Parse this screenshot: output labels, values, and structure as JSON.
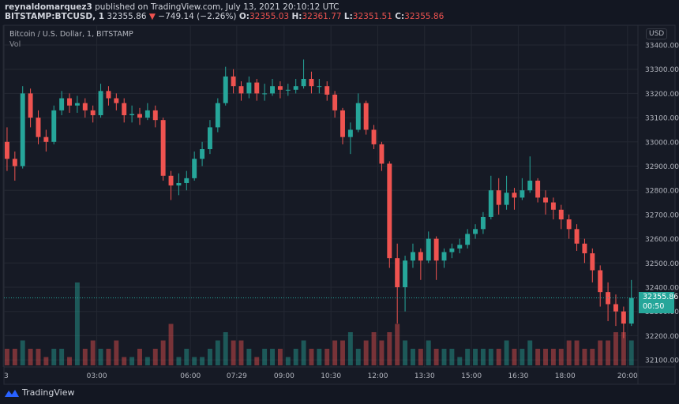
{
  "header": {
    "author": "reynaldomarquez3",
    "published": "published on TradingView.com, July 13, 2021 20:10:12 UTC",
    "symbol": "BITSTAMP:BTCUSD, 1",
    "last": "32355.86",
    "change": "−749.14 (−2.26%)",
    "o_label": "O:",
    "o": "32355.03",
    "h_label": "H:",
    "h": "32361.77",
    "l_label": "L:",
    "l": "32351.51",
    "c_label": "C:",
    "c": "32355.86",
    "down_arrow_icon": "triangle-down-icon"
  },
  "pane": {
    "title": "Bitcoin / U.S. Dollar, 1, BITSTAMP",
    "vol_label": "Vol",
    "currency": "USD"
  },
  "last_price_label": {
    "price": "32355.86",
    "countdown": "00:50"
  },
  "footer": {
    "brand": "TradingView"
  },
  "colors": {
    "up": "#26a69a",
    "down": "#ef5350",
    "background": "#161a25",
    "grid": "#242833"
  },
  "chart_data": {
    "type": "candlestick",
    "title": "Bitcoin / U.S. Dollar, 1, BITSTAMP",
    "note_interval_shown": "approximated at 15-minute resolution",
    "ylim": [
      32050,
      33480
    ],
    "y_ticks": [
      "32100.00",
      "32200.00",
      "32300.00",
      "32400.00",
      "32500.00",
      "32600.00",
      "32700.00",
      "32800.00",
      "32900.00",
      "33000.00",
      "33100.00",
      "33200.00",
      "33300.00",
      "33400.00"
    ],
    "x_ticks": [
      {
        "label": "3",
        "minute": 0
      },
      {
        "label": "03:00",
        "minute": 180
      },
      {
        "label": "06:00",
        "minute": 360
      },
      {
        "label": "07:29",
        "minute": 449
      },
      {
        "label": "09:00",
        "minute": 540
      },
      {
        "label": "10:30",
        "minute": 630
      },
      {
        "label": "12:00",
        "minute": 720
      },
      {
        "label": "13:30",
        "minute": 810
      },
      {
        "label": "15:00",
        "minute": 900
      },
      {
        "label": "16:30",
        "minute": 990
      },
      {
        "label": "18:00",
        "minute": 1080
      },
      {
        "label": "20:00",
        "minute": 1200
      }
    ],
    "candle_minutes": 15,
    "last_price": 32355.86,
    "grid": true,
    "ohlc": [
      [
        33000,
        33060,
        32880,
        32930
      ],
      [
        32930,
        32960,
        32840,
        32900
      ],
      [
        32900,
        33230,
        32890,
        33200
      ],
      [
        33200,
        33220,
        33060,
        33100
      ],
      [
        33100,
        33130,
        32990,
        33020
      ],
      [
        33020,
        33050,
        32960,
        33000
      ],
      [
        33000,
        33150,
        32990,
        33130
      ],
      [
        33130,
        33210,
        33110,
        33180
      ],
      [
        33180,
        33200,
        33120,
        33150
      ],
      [
        33150,
        33190,
        33120,
        33160
      ],
      [
        33160,
        33180,
        33100,
        33130
      ],
      [
        33130,
        33150,
        33080,
        33110
      ],
      [
        33110,
        33240,
        33100,
        33210
      ],
      [
        33210,
        33230,
        33150,
        33180
      ],
      [
        33180,
        33200,
        33130,
        33160
      ],
      [
        33160,
        33180,
        33080,
        33110
      ],
      [
        33110,
        33150,
        33080,
        33115
      ],
      [
        33115,
        33140,
        33070,
        33100
      ],
      [
        33100,
        33160,
        33090,
        33130
      ],
      [
        33130,
        33150,
        33060,
        33090
      ],
      [
        33090,
        33100,
        32840,
        32860
      ],
      [
        32860,
        32880,
        32760,
        32820
      ],
      [
        32820,
        32870,
        32780,
        32830
      ],
      [
        32830,
        32880,
        32800,
        32850
      ],
      [
        32850,
        32960,
        32840,
        32930
      ],
      [
        32930,
        33000,
        32900,
        32970
      ],
      [
        32970,
        33090,
        32950,
        33060
      ],
      [
        33060,
        33180,
        33040,
        33160
      ],
      [
        33160,
        33310,
        33150,
        33270
      ],
      [
        33270,
        33300,
        33200,
        33230
      ],
      [
        33230,
        33250,
        33170,
        33200
      ],
      [
        33200,
        33270,
        33180,
        33245
      ],
      [
        33245,
        33260,
        33170,
        33200
      ],
      [
        33200,
        33240,
        33170,
        33200
      ],
      [
        33200,
        33260,
        33190,
        33230
      ],
      [
        33230,
        33250,
        33180,
        33215
      ],
      [
        33215,
        33240,
        33190,
        33215
      ],
      [
        33215,
        33260,
        33200,
        33230
      ],
      [
        33230,
        33340,
        33220,
        33260
      ],
      [
        33260,
        33290,
        33200,
        33230
      ],
      [
        33230,
        33260,
        33200,
        33230
      ],
      [
        33230,
        33250,
        33170,
        33195
      ],
      [
        33195,
        33210,
        33100,
        33130
      ],
      [
        33130,
        33140,
        32990,
        33020
      ],
      [
        33020,
        33080,
        32950,
        33050
      ],
      [
        33050,
        33200,
        33040,
        33160
      ],
      [
        33160,
        33170,
        33030,
        33050
      ],
      [
        33050,
        33070,
        32970,
        32990
      ],
      [
        32990,
        33000,
        32880,
        32910
      ],
      [
        32910,
        32920,
        32480,
        32520
      ],
      [
        32520,
        32580,
        32250,
        32400
      ],
      [
        32400,
        32530,
        32300,
        32510
      ],
      [
        32510,
        32580,
        32480,
        32545
      ],
      [
        32545,
        32560,
        32430,
        32510
      ],
      [
        32510,
        32630,
        32500,
        32600
      ],
      [
        32600,
        32610,
        32430,
        32510
      ],
      [
        32510,
        32560,
        32480,
        32545
      ],
      [
        32545,
        32580,
        32520,
        32560
      ],
      [
        32560,
        32600,
        32540,
        32575
      ],
      [
        32575,
        32640,
        32560,
        32620
      ],
      [
        32620,
        32660,
        32600,
        32640
      ],
      [
        32640,
        32710,
        32620,
        32690
      ],
      [
        32690,
        32860,
        32680,
        32800
      ],
      [
        32800,
        32850,
        32700,
        32740
      ],
      [
        32740,
        32860,
        32720,
        32790
      ],
      [
        32790,
        32810,
        32720,
        32770
      ],
      [
        32770,
        32850,
        32760,
        32800
      ],
      [
        32800,
        32940,
        32790,
        32840
      ],
      [
        32840,
        32850,
        32750,
        32770
      ],
      [
        32770,
        32800,
        32700,
        32750
      ],
      [
        32750,
        32770,
        32680,
        32720
      ],
      [
        32720,
        32740,
        32640,
        32680
      ],
      [
        32680,
        32700,
        32600,
        32640
      ],
      [
        32640,
        32660,
        32550,
        32580
      ],
      [
        32580,
        32600,
        32500,
        32540
      ],
      [
        32540,
        32560,
        32420,
        32470
      ],
      [
        32470,
        32490,
        32320,
        32380
      ],
      [
        32380,
        32420,
        32260,
        32330
      ],
      [
        32330,
        32370,
        32240,
        32300
      ],
      [
        32300,
        32320,
        32190,
        32250
      ],
      [
        32250,
        32430,
        32240,
        32355.86
      ]
    ],
    "volume_relative": [
      2,
      2,
      3,
      2,
      2,
      1,
      2,
      2,
      1,
      10,
      2,
      3,
      2,
      2,
      3,
      1,
      1,
      2,
      1,
      2,
      3,
      5,
      1,
      2,
      1,
      1,
      2,
      3,
      4,
      3,
      3,
      2,
      1,
      2,
      2,
      2,
      1,
      2,
      3,
      2,
      2,
      2,
      3,
      3,
      4,
      2,
      3,
      4,
      3,
      4,
      5,
      3,
      2,
      2,
      3,
      2,
      2,
      2,
      1,
      2,
      2,
      2,
      2,
      2,
      3,
      2,
      2,
      3,
      2,
      2,
      2,
      2,
      3,
      3,
      2,
      2,
      3,
      3,
      4,
      4,
      3
    ]
  }
}
